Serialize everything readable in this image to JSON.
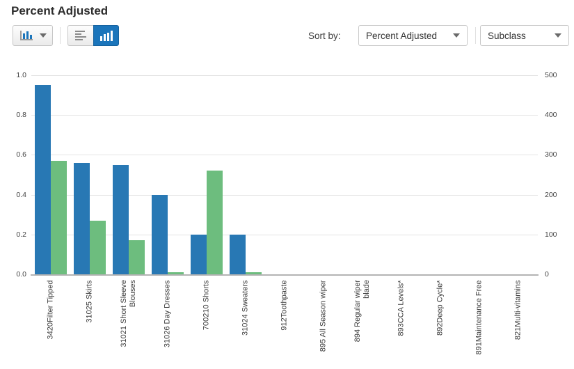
{
  "title": "Percent Adjusted",
  "toolbar": {
    "chart_type_button": {
      "icon": "bar-chart-icon",
      "caret_icon": "caret-down-icon"
    },
    "view_toggle": {
      "horizontal": {
        "icon": "horizontal-bars-icon",
        "active": false
      },
      "vertical": {
        "icon": "vertical-bars-icon",
        "active": true
      }
    },
    "sort_by_label": "Sort by:",
    "sort_metric": {
      "value": "Percent Adjusted",
      "caret_icon": "caret-down-icon"
    },
    "sort_dimension": {
      "value": "Subclass",
      "caret_icon": "caret-down-icon"
    }
  },
  "colors": {
    "primary_bar": "#2878b4",
    "secondary_bar": "#6dbd7e",
    "active_button": "#1b75bb",
    "gridline": "#e4e4e4",
    "axis_line": "#b3b3b3"
  },
  "chart_data": {
    "type": "bar",
    "title": "Percent Adjusted",
    "categories": [
      "3420Filter Tipped",
      "31025 Skirts",
      "31021 Short Sleeve Blouses",
      "31026 Day Dresses",
      "700210 Shorts",
      "31024 Sweaters",
      "912Toothpaste",
      "895 All Season wiper",
      "894 Regular wiper blade",
      "893CCA Levels*",
      "892Deep Cycle*",
      "891Maintenance Free",
      "821Multi-vitamins"
    ],
    "category_label_lines": [
      [
        "3420Filter Tipped"
      ],
      [
        "31025 Skirts"
      ],
      [
        "31021 Short Sleeve",
        "Blouses"
      ],
      [
        "31026 Day Dresses"
      ],
      [
        "700210 Shorts"
      ],
      [
        "31024 Sweaters"
      ],
      [
        "912Toothpaste"
      ],
      [
        "895 All Season wiper"
      ],
      [
        "894 Regular wiper",
        "blade"
      ],
      [
        "893CCA Levels*"
      ],
      [
        "892Deep Cycle*"
      ],
      [
        "891Maintenance Free"
      ],
      [
        "821Multi-vitamins"
      ]
    ],
    "series": [
      {
        "id": "blue-series",
        "axis": "left",
        "color": "#2878b4",
        "values": [
          0.95,
          0.56,
          0.55,
          0.4,
          0.2,
          0.2,
          0,
          0,
          0,
          0,
          0,
          0,
          0
        ]
      },
      {
        "id": "green-series",
        "axis": "right",
        "color": "#6dbd7e",
        "values": [
          285,
          135,
          85,
          5,
          260,
          5,
          0,
          0,
          0,
          0,
          0,
          0,
          0
        ]
      }
    ],
    "left_axis": {
      "min": 0,
      "max": 1,
      "ticks": [
        "0.0",
        "0.2",
        "0.4",
        "0.6",
        "0.8",
        "1.0"
      ]
    },
    "right_axis": {
      "min": 0,
      "max": 500,
      "ticks": [
        "0",
        "100",
        "200",
        "300",
        "400",
        "500"
      ]
    },
    "grid": true,
    "legend": "none",
    "xlabel": "",
    "ylabel": ""
  }
}
